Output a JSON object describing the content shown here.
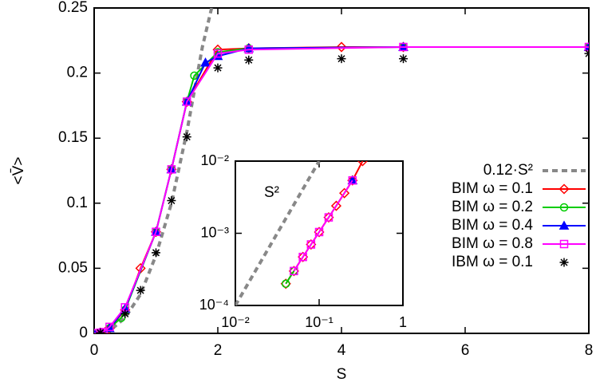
{
  "chart_data": [
    {
      "type": "line",
      "xlabel": "S",
      "ylabel": "<V̄>",
      "xlim": [
        0,
        8
      ],
      "ylim": [
        0,
        0.25
      ],
      "xticks": [
        0,
        2,
        4,
        6,
        8
      ],
      "yticks": [
        0,
        0.05,
        0.1,
        0.15,
        0.2,
        0.25
      ],
      "legend": "right",
      "series": [
        {
          "name": "0.12·S²",
          "color": "#888888",
          "style": "dashed",
          "marker": "none",
          "x": [
            0,
            0.25,
            0.5,
            0.75,
            1,
            1.25,
            1.5,
            1.75,
            1.9
          ],
          "values": [
            0,
            0.002,
            0.012,
            0.03,
            0.06,
            0.1,
            0.155,
            0.22,
            0.25
          ]
        },
        {
          "name": "BIM ω = 0.1",
          "color": "#ff0000",
          "style": "solid",
          "marker": "diamond",
          "x": [
            0,
            0.1,
            0.2,
            0.25,
            0.5,
            0.75,
            1,
            1.25,
            1.5,
            2,
            2.5,
            4,
            5,
            8
          ],
          "values": [
            0,
            0.0005,
            0.002,
            0.004,
            0.018,
            0.05,
            0.078,
            0.126,
            0.178,
            0.218,
            0.219,
            0.22,
            0.22,
            0.22
          ]
        },
        {
          "name": "BIM ω = 0.2",
          "color": "#00cc00",
          "style": "solid",
          "marker": "circle",
          "x": [
            0,
            0.1,
            0.25,
            0.44,
            0.5,
            1,
            1.25,
            1.5,
            1.62,
            2,
            2.5,
            5,
            8
          ],
          "values": [
            0,
            0.0005,
            0.004,
            0.012,
            0.018,
            0.078,
            0.126,
            0.178,
            0.198,
            0.216,
            0.219,
            0.22,
            0.22
          ]
        },
        {
          "name": "BIM ω = 0.4",
          "color": "#0000ff",
          "style": "solid",
          "marker": "triangle",
          "x": [
            0,
            0.1,
            0.25,
            0.5,
            1,
            1.25,
            1.5,
            1.8,
            2,
            2.5,
            5,
            8
          ],
          "values": [
            0,
            0.0005,
            0.004,
            0.019,
            0.078,
            0.126,
            0.178,
            0.208,
            0.213,
            0.219,
            0.22,
            0.22
          ]
        },
        {
          "name": "BIM ω = 0.8",
          "color": "#ff00ff",
          "style": "solid",
          "marker": "square",
          "x": [
            0,
            0.05,
            0.1,
            0.15,
            0.25,
            0.5,
            1,
            1.25,
            1.5,
            2,
            2.5,
            5,
            8
          ],
          "values": [
            0,
            0,
            0.0005,
            0.001,
            0.005,
            0.02,
            0.078,
            0.126,
            0.178,
            0.215,
            0.218,
            0.22,
            0.22
          ]
        },
        {
          "name": "IBM ω = 0.1",
          "color": "#000000",
          "style": "none",
          "marker": "star",
          "x": [
            0.1,
            0.5,
            0.75,
            1,
            1.25,
            1.5,
            2,
            2.5,
            4,
            5,
            8
          ],
          "values": [
            0.0005,
            0.015,
            0.033,
            0.062,
            0.102,
            0.151,
            0.204,
            0.21,
            0.211,
            0.211,
            0.215
          ]
        }
      ]
    },
    {
      "type": "line",
      "log_scale": true,
      "annotation": "S²",
      "xlim": [
        0.01,
        1
      ],
      "ylim": [
        0.0001,
        0.01
      ],
      "xticks": [
        {
          "value": 0.01,
          "label": "10⁻²"
        },
        {
          "value": 0.1,
          "label": "10⁻¹"
        },
        1
      ],
      "yticks": [
        {
          "value": 0.0001,
          "label": "10⁻⁴"
        },
        {
          "value": 0.001,
          "label": "10⁻³"
        },
        {
          "value": 0.01,
          "label": "10⁻²"
        }
      ],
      "series": [
        {
          "color": "#888888",
          "style": "dashed",
          "marker": "none",
          "x": [
            0.01,
            0.1
          ],
          "values": [
            0.0001,
            0.01
          ]
        },
        {
          "color": "#ff0000",
          "style": "solid",
          "marker": "diamond",
          "x": [
            0.04,
            0.05,
            0.064,
            0.08,
            0.1,
            0.13,
            0.16,
            0.2,
            0.25,
            0.33
          ],
          "values": [
            0.0002,
            0.0003,
            0.00047,
            0.0007,
            0.00104,
            0.00166,
            0.0024,
            0.0036,
            0.0054,
            0.01
          ]
        },
        {
          "color": "#00cc00",
          "style": "solid",
          "marker": "circle",
          "x": [
            0.04,
            0.05
          ],
          "values": [
            0.0002,
            0.0003
          ]
        },
        {
          "color": "#0000ff",
          "style": "solid",
          "marker": "triangle",
          "x": [
            0.25
          ],
          "values": [
            0.0054
          ]
        },
        {
          "color": "#ff00ff",
          "style": "solid",
          "marker": "square",
          "x": [
            0.05,
            0.064,
            0.08,
            0.1,
            0.13,
            0.25
          ],
          "values": [
            0.0003,
            0.00047,
            0.0007,
            0.00104,
            0.00166,
            0.0054
          ]
        }
      ]
    }
  ]
}
